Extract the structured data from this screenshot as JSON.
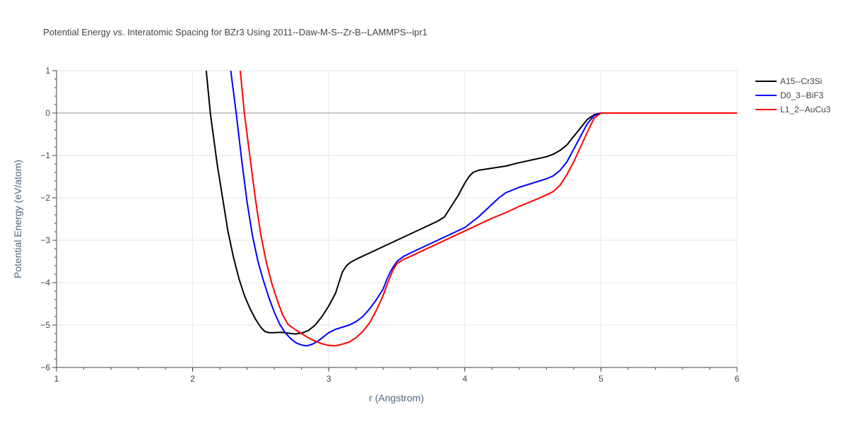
{
  "chart_data": {
    "type": "line",
    "title": "Potential Energy vs. Interatomic Spacing for BZr3 Using 2011--Daw-M-S--Zr-B--LAMMPS--ipr1",
    "xlabel": "r (Angstrom)",
    "ylabel": "Potential Energy (eV/atom)",
    "xlim": [
      1,
      6
    ],
    "ylim": [
      -6,
      1
    ],
    "x_ticks": [
      "1",
      "2",
      "3",
      "4",
      "5",
      "6"
    ],
    "y_ticks": [
      "1",
      "0",
      "−1",
      "−2",
      "−3",
      "−4",
      "−5",
      "−6"
    ],
    "grid": true,
    "legend_position": "top-right",
    "series": [
      {
        "name": "A15--Cr3Si",
        "color": "#000000",
        "points": [
          [
            2.1,
            1.0
          ],
          [
            2.13,
            0.0
          ],
          [
            2.18,
            -1.2
          ],
          [
            2.22,
            -2.0
          ],
          [
            2.26,
            -2.8
          ],
          [
            2.3,
            -3.4
          ],
          [
            2.34,
            -3.9
          ],
          [
            2.38,
            -4.3
          ],
          [
            2.42,
            -4.6
          ],
          [
            2.46,
            -4.85
          ],
          [
            2.5,
            -5.05
          ],
          [
            2.53,
            -5.15
          ],
          [
            2.56,
            -5.18
          ],
          [
            2.6,
            -5.18
          ],
          [
            2.65,
            -5.17
          ],
          [
            2.7,
            -5.19
          ],
          [
            2.75,
            -5.21
          ],
          [
            2.8,
            -5.19
          ],
          [
            2.85,
            -5.13
          ],
          [
            2.9,
            -5.0
          ],
          [
            2.95,
            -4.8
          ],
          [
            3.0,
            -4.55
          ],
          [
            3.05,
            -4.25
          ],
          [
            3.08,
            -3.95
          ],
          [
            3.1,
            -3.75
          ],
          [
            3.13,
            -3.6
          ],
          [
            3.16,
            -3.52
          ],
          [
            3.2,
            -3.45
          ],
          [
            3.3,
            -3.3
          ],
          [
            3.4,
            -3.15
          ],
          [
            3.5,
            -3.0
          ],
          [
            3.6,
            -2.85
          ],
          [
            3.7,
            -2.7
          ],
          [
            3.8,
            -2.55
          ],
          [
            3.85,
            -2.45
          ],
          [
            3.9,
            -2.2
          ],
          [
            3.95,
            -1.95
          ],
          [
            4.0,
            -1.65
          ],
          [
            4.03,
            -1.5
          ],
          [
            4.06,
            -1.4
          ],
          [
            4.1,
            -1.35
          ],
          [
            4.2,
            -1.3
          ],
          [
            4.3,
            -1.25
          ],
          [
            4.4,
            -1.17
          ],
          [
            4.5,
            -1.1
          ],
          [
            4.6,
            -1.03
          ],
          [
            4.65,
            -0.97
          ],
          [
            4.7,
            -0.88
          ],
          [
            4.75,
            -0.75
          ],
          [
            4.8,
            -0.55
          ],
          [
            4.85,
            -0.35
          ],
          [
            4.9,
            -0.15
          ],
          [
            4.95,
            -0.04
          ],
          [
            5.0,
            0.0
          ],
          [
            6.0,
            0.0
          ]
        ]
      },
      {
        "name": "D0_3--BiF3",
        "color": "#0000ff",
        "points": [
          [
            2.28,
            1.0
          ],
          [
            2.32,
            0.0
          ],
          [
            2.36,
            -1.1
          ],
          [
            2.4,
            -2.1
          ],
          [
            2.44,
            -2.9
          ],
          [
            2.48,
            -3.5
          ],
          [
            2.52,
            -3.95
          ],
          [
            2.56,
            -4.35
          ],
          [
            2.6,
            -4.7
          ],
          [
            2.64,
            -4.98
          ],
          [
            2.68,
            -5.18
          ],
          [
            2.72,
            -5.32
          ],
          [
            2.76,
            -5.42
          ],
          [
            2.8,
            -5.47
          ],
          [
            2.84,
            -5.49
          ],
          [
            2.88,
            -5.45
          ],
          [
            2.92,
            -5.38
          ],
          [
            2.96,
            -5.28
          ],
          [
            3.0,
            -5.18
          ],
          [
            3.05,
            -5.1
          ],
          [
            3.1,
            -5.05
          ],
          [
            3.15,
            -5.0
          ],
          [
            3.2,
            -4.92
          ],
          [
            3.25,
            -4.8
          ],
          [
            3.3,
            -4.62
          ],
          [
            3.35,
            -4.4
          ],
          [
            3.4,
            -4.15
          ],
          [
            3.43,
            -3.9
          ],
          [
            3.46,
            -3.7
          ],
          [
            3.5,
            -3.5
          ],
          [
            3.55,
            -3.38
          ],
          [
            3.6,
            -3.3
          ],
          [
            3.7,
            -3.15
          ],
          [
            3.8,
            -3.0
          ],
          [
            3.9,
            -2.85
          ],
          [
            4.0,
            -2.7
          ],
          [
            4.1,
            -2.45
          ],
          [
            4.2,
            -2.15
          ],
          [
            4.25,
            -2.0
          ],
          [
            4.3,
            -1.88
          ],
          [
            4.4,
            -1.75
          ],
          [
            4.5,
            -1.65
          ],
          [
            4.6,
            -1.55
          ],
          [
            4.65,
            -1.48
          ],
          [
            4.7,
            -1.35
          ],
          [
            4.75,
            -1.15
          ],
          [
            4.8,
            -0.85
          ],
          [
            4.85,
            -0.55
          ],
          [
            4.9,
            -0.25
          ],
          [
            4.95,
            -0.06
          ],
          [
            5.0,
            0.0
          ],
          [
            6.0,
            0.0
          ]
        ]
      },
      {
        "name": "L1_2--AuCu3",
        "color": "#ff0000",
        "points": [
          [
            2.35,
            1.0
          ],
          [
            2.38,
            0.0
          ],
          [
            2.42,
            -1.0
          ],
          [
            2.46,
            -2.0
          ],
          [
            2.5,
            -2.85
          ],
          [
            2.54,
            -3.5
          ],
          [
            2.58,
            -4.0
          ],
          [
            2.62,
            -4.4
          ],
          [
            2.66,
            -4.75
          ],
          [
            2.7,
            -4.98
          ],
          [
            2.75,
            -5.1
          ],
          [
            2.8,
            -5.2
          ],
          [
            2.85,
            -5.3
          ],
          [
            2.9,
            -5.38
          ],
          [
            2.95,
            -5.44
          ],
          [
            3.0,
            -5.48
          ],
          [
            3.05,
            -5.49
          ],
          [
            3.1,
            -5.45
          ],
          [
            3.15,
            -5.4
          ],
          [
            3.2,
            -5.3
          ],
          [
            3.25,
            -5.15
          ],
          [
            3.3,
            -4.95
          ],
          [
            3.35,
            -4.65
          ],
          [
            3.4,
            -4.3
          ],
          [
            3.44,
            -3.95
          ],
          [
            3.47,
            -3.72
          ],
          [
            3.5,
            -3.55
          ],
          [
            3.55,
            -3.45
          ],
          [
            3.6,
            -3.38
          ],
          [
            3.7,
            -3.23
          ],
          [
            3.8,
            -3.08
          ],
          [
            3.9,
            -2.93
          ],
          [
            4.0,
            -2.78
          ],
          [
            4.1,
            -2.63
          ],
          [
            4.2,
            -2.48
          ],
          [
            4.3,
            -2.35
          ],
          [
            4.4,
            -2.2
          ],
          [
            4.5,
            -2.07
          ],
          [
            4.6,
            -1.93
          ],
          [
            4.65,
            -1.85
          ],
          [
            4.7,
            -1.7
          ],
          [
            4.75,
            -1.45
          ],
          [
            4.8,
            -1.15
          ],
          [
            4.85,
            -0.8
          ],
          [
            4.9,
            -0.45
          ],
          [
            4.95,
            -0.12
          ],
          [
            5.0,
            0.0
          ],
          [
            6.0,
            0.0
          ]
        ]
      }
    ]
  }
}
